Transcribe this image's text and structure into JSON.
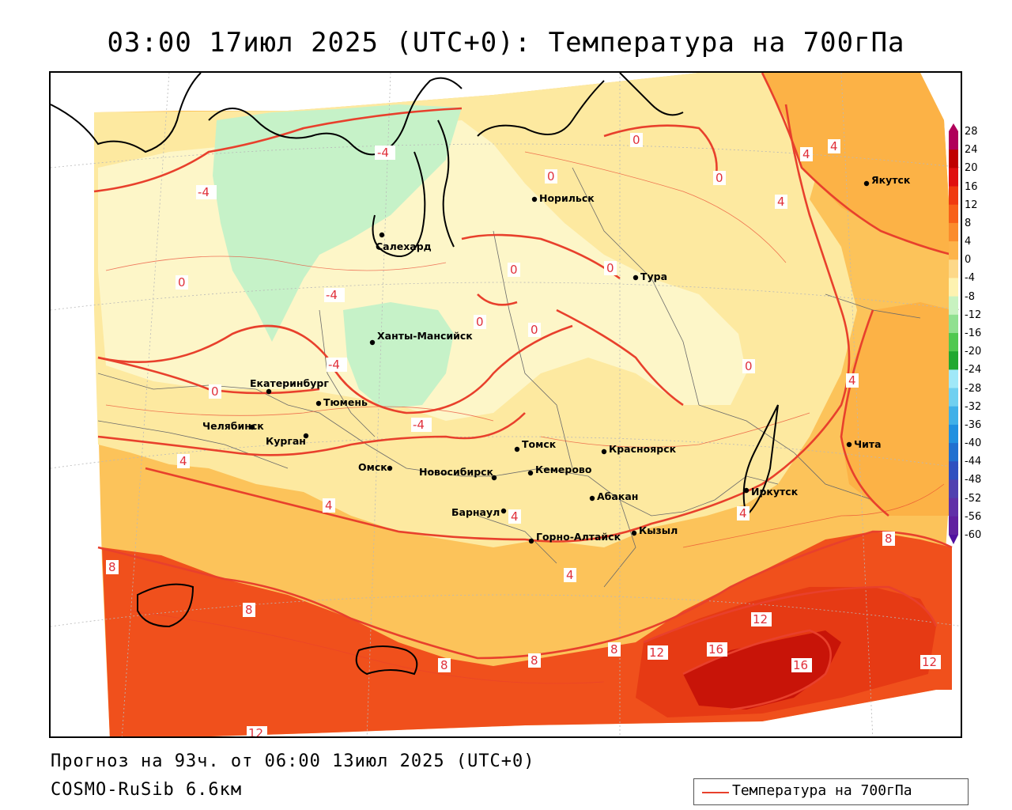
{
  "title": "03:00 17июл 2025 (UTC+0): Температура на 700гПа",
  "footer": {
    "forecast": "Прогноз на 93ч. от 06:00 13июл 2025 (UTC+0)",
    "model": "COSMO-RuSib 6.6км"
  },
  "legend": {
    "label": "Температура на 700гПа",
    "color": "#e8402c"
  },
  "scale": {
    "labels": [
      "28",
      "24",
      "20",
      "16",
      "12",
      "8",
      "4",
      "0",
      "-4",
      "-8",
      "-12",
      "-16",
      "-20",
      "-24",
      "-28",
      "-32",
      "-36",
      "-40",
      "-44",
      "-48",
      "-52",
      "-56",
      "-60"
    ],
    "colors": [
      "#b0005a",
      "#c00000",
      "#e01010",
      "#f03a10",
      "#f86018",
      "#fb8c2c",
      "#fdb44a",
      "#fdd888",
      "#fdf2b0",
      "#c8f2c0",
      "#90e090",
      "#50c850",
      "#20a830",
      "#a0e8f8",
      "#70d0f0",
      "#40b0e8",
      "#2090e0",
      "#2070d0",
      "#3050c0",
      "#5040b0",
      "#6030a8",
      "#6020a0",
      "#5010a0"
    ]
  },
  "colors": {
    "warm_16": "#d61a10",
    "warm_12": "#f0501c",
    "warm_8": "#fb9a34",
    "warm_4": "#fcc35a",
    "warm_0": "#fde9a0",
    "cold_m4": "#fdf6c8",
    "cold_m8": "#c6f2c8",
    "contour": "#e8402c",
    "coast": "#000000"
  },
  "cities": [
    {
      "name": "Норильск"
    },
    {
      "name": "Салехард"
    },
    {
      "name": "Тура"
    },
    {
      "name": "Якутск"
    },
    {
      "name": "Ханты-Мансийск"
    },
    {
      "name": "Екатеринбург"
    },
    {
      "name": "Тюмень"
    },
    {
      "name": "Челябинск"
    },
    {
      "name": "Курган"
    },
    {
      "name": "Омск"
    },
    {
      "name": "Новосибирск"
    },
    {
      "name": "Томск"
    },
    {
      "name": "Кемерово"
    },
    {
      "name": "Красноярск"
    },
    {
      "name": "Абакан"
    },
    {
      "name": "Барнаул"
    },
    {
      "name": "Горно-Алтайск"
    },
    {
      "name": "Кызыл"
    },
    {
      "name": "Иркутск"
    },
    {
      "name": "Чита"
    }
  ],
  "contour_labels": [
    "-4",
    "-4",
    "-4",
    "-4",
    "-4",
    "0",
    "0",
    "0",
    "0",
    "0",
    "0",
    "0",
    "0",
    "0",
    "0",
    "4",
    "4",
    "4",
    "4",
    "4",
    "4",
    "4",
    "4",
    "4",
    "8",
    "8",
    "8",
    "8",
    "8",
    "8",
    "12",
    "12",
    "12",
    "12",
    "16",
    "16"
  ]
}
